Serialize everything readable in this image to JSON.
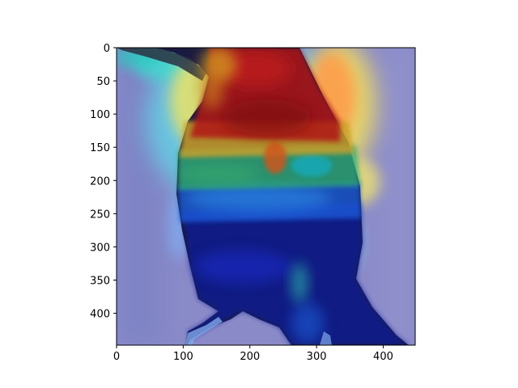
{
  "figure": {
    "kind": "heatmap-overlay",
    "subject": "bird",
    "colormap": "jet",
    "background_tint": "#8a8ac8",
    "xlim": [
      0,
      448
    ],
    "ylim": [
      448,
      0
    ],
    "x_ticks": [
      {
        "value": 0,
        "label": "0"
      },
      {
        "value": 100,
        "label": "100"
      },
      {
        "value": 200,
        "label": "200"
      },
      {
        "value": 300,
        "label": "300"
      },
      {
        "value": 400,
        "label": "400"
      }
    ],
    "y_ticks": [
      {
        "value": 0,
        "label": "0"
      },
      {
        "value": 50,
        "label": "50"
      },
      {
        "value": 100,
        "label": "100"
      },
      {
        "value": 150,
        "label": "150"
      },
      {
        "value": 200,
        "label": "200"
      },
      {
        "value": 250,
        "label": "250"
      },
      {
        "value": 300,
        "label": "300"
      },
      {
        "value": 350,
        "label": "350"
      },
      {
        "value": 400,
        "label": "400"
      }
    ]
  }
}
